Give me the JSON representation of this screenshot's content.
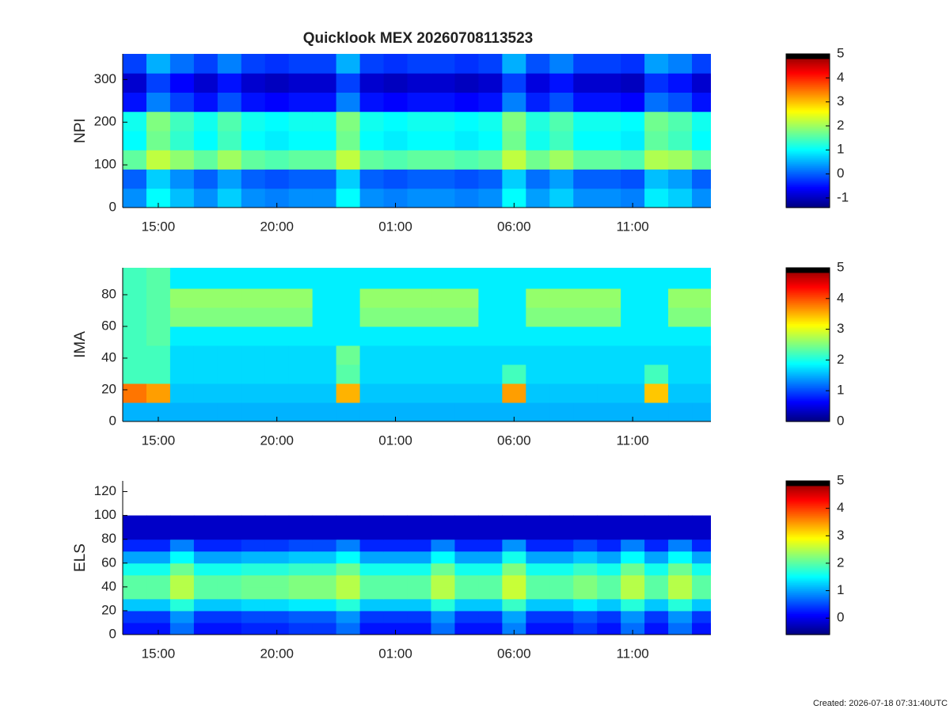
{
  "chart_data": [
    {
      "type": "heatmap",
      "title": "Quicklook MEX 20260708113523",
      "ylabel": "NPI",
      "x_edges": [
        13.5,
        14.5,
        15.5,
        16.5,
        17.5,
        18.5,
        19.5,
        20.5,
        21.5,
        22.5,
        23.5,
        24.5,
        25.5,
        26.5,
        27.5,
        28.5,
        29.5,
        30.5,
        31.5,
        32.5,
        33.5,
        34.5,
        35.5,
        36.5,
        37.5,
        38.5
      ],
      "y_edges": [
        0,
        45,
        90,
        135,
        180,
        225,
        270,
        315,
        360
      ],
      "z": [
        [
          0.3,
          1.0,
          0.6,
          0.3,
          0.7,
          0.3,
          0.2,
          0.3,
          0.3,
          1.0,
          0.3,
          0.2,
          0.3,
          0.3,
          0.2,
          0.3,
          1.0,
          0.4,
          0.7,
          0.3,
          0.3,
          0.2,
          0.9,
          0.7,
          0.3
        ],
        [
          0.0,
          0.7,
          0.3,
          0.0,
          0.4,
          0.0,
          -0.1,
          0.0,
          0.0,
          0.7,
          0.0,
          -0.1,
          0.0,
          0.0,
          -0.1,
          0.0,
          0.7,
          0.1,
          0.4,
          0.0,
          0.0,
          -0.1,
          0.6,
          0.4,
          0.0
        ],
        [
          1.6,
          2.2,
          1.9,
          1.6,
          2.0,
          1.6,
          1.5,
          1.6,
          1.6,
          2.2,
          1.6,
          1.5,
          1.6,
          1.6,
          1.5,
          1.6,
          2.2,
          1.7,
          2.0,
          1.6,
          1.6,
          1.5,
          2.1,
          2.0,
          1.6
        ],
        [
          1.0,
          1.7,
          1.3,
          1.0,
          1.4,
          1.0,
          0.9,
          1.0,
          1.0,
          1.7,
          1.0,
          0.9,
          1.0,
          1.0,
          0.9,
          1.0,
          1.7,
          1.1,
          1.4,
          1.0,
          1.0,
          0.9,
          1.6,
          1.4,
          1.0
        ],
        [
          1.1,
          1.8,
          1.4,
          1.1,
          1.5,
          1.1,
          1.0,
          1.1,
          1.1,
          1.8,
          1.1,
          1.0,
          1.1,
          1.1,
          1.0,
          1.1,
          1.8,
          1.2,
          1.5,
          1.1,
          1.1,
          1.0,
          1.7,
          1.5,
          1.1
        ],
        [
          -0.5,
          0.2,
          -0.2,
          -0.5,
          -0.1,
          -0.5,
          -0.6,
          -0.5,
          -0.5,
          0.2,
          -0.5,
          -0.6,
          -0.5,
          -0.5,
          -0.6,
          -0.5,
          0.2,
          -0.4,
          -0.1,
          -0.5,
          -0.5,
          -0.6,
          0.1,
          -0.1,
          -0.5
        ],
        [
          -0.9,
          -0.2,
          -0.6,
          -0.9,
          -0.5,
          -0.9,
          -1.0,
          -0.9,
          -0.9,
          -0.2,
          -0.9,
          -1.0,
          -0.9,
          -0.9,
          -1.0,
          -0.9,
          -0.2,
          -0.8,
          -0.5,
          -0.9,
          -0.9,
          -1.0,
          -0.3,
          -0.5,
          -0.9
        ],
        [
          -0.2,
          0.5,
          0.1,
          -0.2,
          0.2,
          -0.2,
          -0.3,
          -0.2,
          -0.2,
          0.5,
          -0.2,
          -0.3,
          -0.2,
          -0.2,
          -0.3,
          -0.2,
          0.5,
          -0.1,
          0.2,
          -0.2,
          -0.2,
          -0.3,
          0.4,
          0.2,
          -0.2
        ]
      ],
      "xlim": [
        13.5,
        38.3
      ],
      "xticks": [
        {
          "value": 15,
          "label": "15:00"
        },
        {
          "value": 20,
          "label": "20:00"
        },
        {
          "value": 25,
          "label": "01:00"
        },
        {
          "value": 30,
          "label": "06:00"
        },
        {
          "value": 35,
          "label": "11:00"
        }
      ],
      "ylim": [
        0,
        360
      ],
      "yticks": [
        0,
        100,
        200,
        300
      ],
      "clim": [
        -1.4,
        5
      ],
      "cticks": [
        -1,
        0,
        1,
        2,
        3,
        4,
        5
      ]
    },
    {
      "type": "heatmap",
      "ylabel": "IMA",
      "x_edges": [
        13.5,
        14.5,
        15.5,
        16.5,
        17.5,
        18.5,
        19.5,
        20.5,
        21.5,
        22.5,
        23.5,
        24.5,
        25.5,
        26.5,
        27.5,
        28.5,
        29.5,
        30.5,
        31.5,
        32.5,
        33.5,
        34.5,
        35.5,
        36.5,
        37.5,
        38.5
      ],
      "y_edges": [
        0,
        12,
        24,
        36,
        48,
        60,
        72,
        84,
        97
      ],
      "z": [
        [
          1.5,
          1.5,
          1.5,
          1.5,
          1.5,
          1.5,
          1.5,
          1.5,
          1.5,
          1.5,
          1.5,
          1.5,
          1.5,
          1.5,
          1.5,
          1.5,
          1.5,
          1.5,
          1.5,
          1.5,
          1.5,
          1.5,
          1.5,
          1.5,
          1.5
        ],
        [
          3.8,
          3.6,
          1.6,
          1.6,
          1.6,
          1.6,
          1.6,
          1.6,
          1.6,
          3.5,
          1.6,
          1.6,
          1.6,
          1.6,
          1.6,
          1.6,
          3.6,
          1.6,
          1.6,
          1.6,
          1.6,
          1.6,
          3.4,
          1.6,
          1.6
        ],
        [
          2.2,
          2.2,
          1.7,
          1.7,
          1.7,
          1.7,
          1.7,
          1.7,
          1.7,
          2.3,
          1.7,
          1.7,
          1.7,
          1.7,
          1.7,
          1.7,
          2.2,
          1.7,
          1.7,
          1.7,
          1.7,
          1.7,
          2.2,
          1.7,
          1.7
        ],
        [
          2.2,
          2.2,
          1.7,
          1.7,
          1.7,
          1.7,
          1.7,
          1.7,
          1.7,
          2.4,
          1.7,
          1.7,
          1.7,
          1.7,
          1.7,
          1.7,
          1.7,
          1.7,
          1.7,
          1.7,
          1.7,
          1.7,
          1.7,
          1.7,
          1.7
        ],
        [
          2.2,
          2.3,
          1.8,
          1.8,
          1.8,
          1.8,
          1.8,
          1.8,
          1.8,
          1.8,
          1.8,
          1.8,
          1.8,
          1.8,
          1.8,
          1.8,
          1.8,
          1.8,
          1.8,
          1.8,
          1.8,
          1.8,
          1.8,
          1.8,
          1.8
        ],
        [
          2.2,
          2.3,
          2.5,
          2.5,
          2.5,
          2.5,
          2.5,
          2.5,
          1.8,
          1.8,
          2.5,
          2.5,
          2.5,
          2.5,
          2.5,
          1.8,
          1.8,
          2.5,
          2.5,
          2.5,
          2.5,
          1.8,
          1.8,
          2.5,
          2.5
        ],
        [
          2.2,
          2.3,
          2.6,
          2.6,
          2.6,
          2.6,
          2.6,
          2.6,
          1.8,
          1.8,
          2.6,
          2.6,
          2.6,
          2.6,
          2.6,
          1.8,
          1.8,
          2.6,
          2.6,
          2.6,
          2.6,
          1.8,
          1.8,
          2.6,
          2.6
        ],
        [
          2.2,
          2.3,
          1.8,
          1.8,
          1.8,
          1.8,
          1.8,
          1.8,
          1.8,
          1.8,
          1.8,
          1.8,
          1.8,
          1.8,
          1.8,
          1.8,
          1.8,
          1.8,
          1.8,
          1.8,
          1.8,
          1.8,
          1.8,
          1.8,
          1.8
        ]
      ],
      "xlim": [
        13.5,
        38.3
      ],
      "xticks": [
        {
          "value": 15,
          "label": "15:00"
        },
        {
          "value": 20,
          "label": "20:00"
        },
        {
          "value": 25,
          "label": "01:00"
        },
        {
          "value": 30,
          "label": "06:00"
        },
        {
          "value": 35,
          "label": "11:00"
        }
      ],
      "ylim": [
        0,
        97
      ],
      "yticks": [
        0,
        20,
        40,
        60,
        80
      ],
      "clim": [
        0,
        5
      ],
      "cticks": [
        0,
        1,
        2,
        3,
        4,
        5
      ]
    },
    {
      "type": "heatmap",
      "ylabel": "ELS",
      "x_edges": [
        13.5,
        14.5,
        15.5,
        16.5,
        17.5,
        18.5,
        19.5,
        20.5,
        21.5,
        22.5,
        23.5,
        24.5,
        25.5,
        26.5,
        27.5,
        28.5,
        29.5,
        30.5,
        31.5,
        32.5,
        33.5,
        34.5,
        35.5,
        36.5,
        37.5,
        38.5
      ],
      "y_edges": [
        0,
        10,
        20,
        30,
        40,
        50,
        60,
        70,
        80,
        100
      ],
      "z": [
        [
          0.2,
          0.2,
          0.7,
          0.2,
          0.2,
          0.3,
          0.3,
          0.4,
          0.4,
          0.7,
          0.2,
          0.2,
          0.2,
          0.7,
          0.2,
          0.2,
          0.8,
          0.2,
          0.2,
          0.4,
          0.2,
          0.7,
          0.2,
          0.7,
          0.2
        ],
        [
          0.4,
          0.4,
          0.9,
          0.4,
          0.4,
          0.5,
          0.5,
          0.6,
          0.6,
          0.9,
          0.4,
          0.4,
          0.4,
          0.9,
          0.4,
          0.4,
          1.0,
          0.4,
          0.4,
          0.6,
          0.4,
          0.9,
          0.4,
          0.9,
          0.4
        ],
        [
          1.2,
          1.2,
          1.7,
          1.2,
          1.2,
          1.3,
          1.3,
          1.4,
          1.4,
          1.7,
          1.2,
          1.2,
          1.2,
          1.7,
          1.2,
          1.2,
          1.8,
          1.2,
          1.2,
          1.4,
          1.2,
          1.7,
          1.2,
          1.7,
          1.2
        ],
        [
          2.0,
          2.0,
          2.5,
          2.0,
          2.0,
          2.1,
          2.1,
          2.2,
          2.2,
          2.5,
          2.0,
          2.0,
          2.0,
          2.5,
          2.0,
          2.0,
          2.6,
          2.0,
          2.0,
          2.2,
          2.0,
          2.5,
          2.0,
          2.5,
          2.0
        ],
        [
          2.0,
          2.0,
          2.5,
          2.0,
          2.0,
          2.1,
          2.1,
          2.2,
          2.2,
          2.5,
          2.0,
          2.0,
          2.0,
          2.5,
          2.0,
          2.0,
          2.6,
          2.0,
          2.0,
          2.2,
          2.0,
          2.5,
          2.0,
          2.5,
          2.0
        ],
        [
          1.6,
          1.6,
          2.1,
          1.6,
          1.6,
          1.7,
          1.7,
          1.8,
          1.8,
          2.1,
          1.6,
          1.6,
          1.6,
          2.1,
          1.6,
          1.6,
          2.2,
          1.6,
          1.6,
          1.8,
          1.6,
          2.1,
          1.6,
          2.1,
          1.6
        ],
        [
          1.0,
          1.0,
          1.5,
          1.0,
          1.0,
          1.1,
          1.1,
          1.2,
          1.2,
          1.5,
          1.0,
          1.0,
          1.0,
          1.5,
          1.0,
          1.0,
          1.6,
          1.0,
          1.0,
          1.2,
          1.0,
          1.5,
          1.0,
          1.5,
          1.0
        ],
        [
          0.3,
          0.3,
          0.8,
          0.3,
          0.3,
          0.4,
          0.4,
          0.5,
          0.5,
          0.8,
          0.3,
          0.3,
          0.3,
          0.8,
          0.3,
          0.3,
          0.9,
          0.3,
          0.3,
          0.5,
          0.3,
          0.8,
          0.3,
          0.8,
          0.3
        ],
        [
          -0.2,
          -0.2,
          -0.2,
          -0.2,
          -0.2,
          -0.2,
          -0.2,
          -0.2,
          -0.2,
          -0.2,
          -0.2,
          -0.2,
          -0.2,
          -0.2,
          -0.2,
          -0.2,
          -0.2,
          -0.2,
          -0.2,
          -0.2,
          -0.2,
          -0.2,
          -0.2,
          -0.2,
          -0.2
        ]
      ],
      "xlim": [
        13.5,
        38.3
      ],
      "xticks": [
        {
          "value": 15,
          "label": "15:00"
        },
        {
          "value": 20,
          "label": "20:00"
        },
        {
          "value": 25,
          "label": "01:00"
        },
        {
          "value": 30,
          "label": "06:00"
        },
        {
          "value": 35,
          "label": "11:00"
        }
      ],
      "ylim": [
        0,
        129
      ],
      "yticks": [
        0,
        20,
        40,
        60,
        80,
        100,
        120
      ],
      "clim": [
        -0.6,
        5
      ],
      "cticks": [
        0,
        1,
        2,
        3,
        4,
        5
      ]
    }
  ],
  "footer": "Created: 2026-07-18 07:31:40UTC"
}
